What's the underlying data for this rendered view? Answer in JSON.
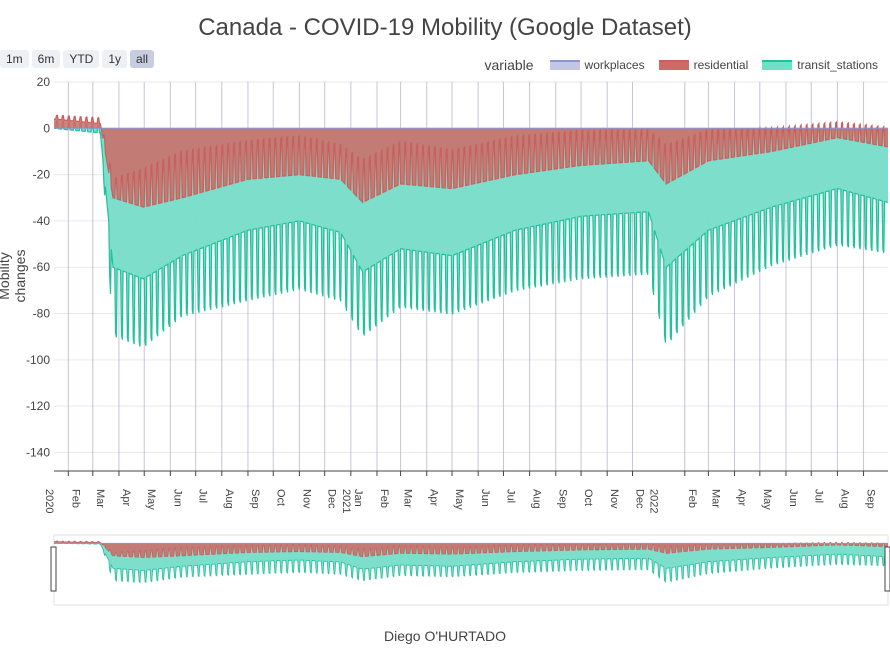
{
  "chart_data": {
    "type": "area",
    "title": "Canada - COVID-19 Mobility (Google Dataset)",
    "ylabel": "Mobility changes",
    "caption": "Diego O'HURTADO",
    "legend_title": "variable",
    "ylim": [
      -148,
      20
    ],
    "yticks": [
      20,
      0,
      -20,
      -40,
      -60,
      -80,
      -100,
      -120,
      -140
    ],
    "x_range": [
      "2020-01-15",
      "2022-09-30"
    ],
    "xtick_labels": [
      "Feb",
      "Mar",
      "Apr",
      "May",
      "Jun",
      "Jul",
      "Aug",
      "Sep",
      "Oct",
      "Nov",
      "Dec",
      "Jan",
      "Feb",
      "Mar",
      "Apr",
      "May",
      "Jun",
      "Jul",
      "Aug",
      "Sep",
      "Oct",
      "Nov",
      "Dec",
      "Feb",
      "Mar",
      "Apr",
      "May",
      "Jun",
      "Jul",
      "Aug",
      "Sep"
    ],
    "xtick_dates": [
      "2020-02-01",
      "2020-03-01",
      "2020-04-01",
      "2020-05-01",
      "2020-06-01",
      "2020-07-01",
      "2020-08-01",
      "2020-09-01",
      "2020-10-01",
      "2020-11-01",
      "2020-12-01",
      "2021-01-01",
      "2021-02-01",
      "2021-03-01",
      "2021-04-01",
      "2021-05-01",
      "2021-06-01",
      "2021-07-01",
      "2021-08-01",
      "2021-09-01",
      "2021-10-01",
      "2021-11-01",
      "2021-12-01",
      "2022-02-01",
      "2022-03-01",
      "2022-04-01",
      "2022-05-01",
      "2022-06-01",
      "2022-07-01",
      "2022-08-01",
      "2022-09-01"
    ],
    "year_ticks": [
      {
        "label": "2020",
        "date": "2020-01-15"
      },
      {
        "label": "2021",
        "date": "2021-01-01"
      },
      {
        "label": "2022",
        "date": "2022-01-01"
      }
    ],
    "grid": true,
    "legend_position": "top-right",
    "range_buttons": [
      "1m",
      "6m",
      "YTD",
      "1y",
      "all"
    ],
    "active_range": "all",
    "has_range_slider": true,
    "weekday_pattern": [
      1.0,
      1.0,
      1.0,
      1.0,
      1.0,
      0.2,
      0.15
    ],
    "series": [
      {
        "name": "workplaces",
        "color": "#8f94cf",
        "fill": "#c4c6e8",
        "baseline": [
          [
            "2020-01-15",
            0
          ],
          [
            "2022-09-30",
            0
          ]
        ],
        "envelope_weekday": [
          [
            "2020-01-15",
            0
          ],
          [
            "2022-09-30",
            0
          ]
        ],
        "envelope_weekend": [
          [
            "2020-01-15",
            0
          ],
          [
            "2022-09-30",
            0
          ]
        ]
      },
      {
        "name": "residential",
        "color": "#c9605e",
        "fill": "#cf6a66",
        "baseline": [
          [
            "2020-01-15",
            4
          ],
          [
            "2020-03-10",
            2
          ],
          [
            "2020-03-25",
            -30
          ],
          [
            "2020-04-30",
            -34
          ],
          [
            "2020-06-15",
            -30
          ],
          [
            "2020-09-01",
            -22
          ],
          [
            "2020-11-01",
            -20
          ],
          [
            "2020-12-20",
            -22
          ],
          [
            "2021-01-15",
            -32
          ],
          [
            "2021-03-01",
            -24
          ],
          [
            "2021-05-01",
            -26
          ],
          [
            "2021-07-15",
            -20
          ],
          [
            "2021-10-01",
            -16
          ],
          [
            "2021-12-20",
            -14
          ],
          [
            "2022-01-10",
            -24
          ],
          [
            "2022-03-01",
            -14
          ],
          [
            "2022-05-15",
            -10
          ],
          [
            "2022-08-01",
            -4
          ],
          [
            "2022-09-30",
            -8
          ]
        ],
        "envelope_weekday": [
          [
            "2020-01-15",
            4
          ],
          [
            "2020-03-10",
            2
          ],
          [
            "2020-03-25",
            -30
          ],
          [
            "2020-04-30",
            -34
          ],
          [
            "2020-06-15",
            -30
          ],
          [
            "2020-09-01",
            -22
          ],
          [
            "2020-11-01",
            -20
          ],
          [
            "2020-12-20",
            -22
          ],
          [
            "2021-01-15",
            -32
          ],
          [
            "2021-03-01",
            -24
          ],
          [
            "2021-05-01",
            -26
          ],
          [
            "2021-07-15",
            -20
          ],
          [
            "2021-10-01",
            -16
          ],
          [
            "2021-12-20",
            -14
          ],
          [
            "2022-01-10",
            -24
          ],
          [
            "2022-03-01",
            -14
          ],
          [
            "2022-05-15",
            -10
          ],
          [
            "2022-08-01",
            -4
          ],
          [
            "2022-09-30",
            -8
          ]
        ],
        "envelope_weekend": [
          [
            "2020-01-15",
            6
          ],
          [
            "2020-03-10",
            5
          ],
          [
            "2020-03-25",
            -20
          ],
          [
            "2020-04-30",
            -14
          ],
          [
            "2020-06-15",
            -6
          ],
          [
            "2020-09-01",
            -2
          ],
          [
            "2020-11-01",
            0
          ],
          [
            "2020-12-20",
            -4
          ],
          [
            "2021-01-15",
            -10
          ],
          [
            "2021-03-01",
            -2
          ],
          [
            "2021-05-01",
            -6
          ],
          [
            "2021-07-15",
            0
          ],
          [
            "2021-10-01",
            2
          ],
          [
            "2021-12-20",
            2
          ],
          [
            "2022-01-10",
            -4
          ],
          [
            "2022-03-01",
            2
          ],
          [
            "2022-05-15",
            2
          ],
          [
            "2022-08-01",
            4
          ],
          [
            "2022-09-30",
            2
          ]
        ]
      },
      {
        "name": "transit_stations",
        "color": "#1ec29c",
        "fill": "#6fe0c6",
        "baseline": [
          [
            "2020-01-15",
            0
          ],
          [
            "2020-03-10",
            -2
          ],
          [
            "2020-03-25",
            -60
          ],
          [
            "2020-04-30",
            -65
          ],
          [
            "2020-06-15",
            -55
          ],
          [
            "2020-09-01",
            -44
          ],
          [
            "2020-11-01",
            -40
          ],
          [
            "2020-12-20",
            -45
          ],
          [
            "2021-01-15",
            -62
          ],
          [
            "2021-03-01",
            -52
          ],
          [
            "2021-05-01",
            -55
          ],
          [
            "2021-07-15",
            -44
          ],
          [
            "2021-10-01",
            -38
          ],
          [
            "2021-12-20",
            -36
          ],
          [
            "2022-01-10",
            -60
          ],
          [
            "2022-03-01",
            -44
          ],
          [
            "2022-05-15",
            -34
          ],
          [
            "2022-08-01",
            -26
          ],
          [
            "2022-09-30",
            -32
          ]
        ],
        "envelope_weekday": [
          [
            "2020-01-15",
            0
          ],
          [
            "2020-03-10",
            -2
          ],
          [
            "2020-03-25",
            -60
          ],
          [
            "2020-04-30",
            -65
          ],
          [
            "2020-06-15",
            -55
          ],
          [
            "2020-09-01",
            -44
          ],
          [
            "2020-11-01",
            -40
          ],
          [
            "2020-12-20",
            -45
          ],
          [
            "2021-01-15",
            -62
          ],
          [
            "2021-03-01",
            -52
          ],
          [
            "2021-05-01",
            -55
          ],
          [
            "2021-07-15",
            -44
          ],
          [
            "2021-10-01",
            -38
          ],
          [
            "2021-12-20",
            -36
          ],
          [
            "2022-01-10",
            -60
          ],
          [
            "2022-03-01",
            -44
          ],
          [
            "2022-05-15",
            -34
          ],
          [
            "2022-08-01",
            -26
          ],
          [
            "2022-09-30",
            -32
          ]
        ],
        "envelope_weekend": [
          [
            "2020-01-15",
            4
          ],
          [
            "2020-03-10",
            2
          ],
          [
            "2020-03-25",
            -95
          ],
          [
            "2020-04-30",
            -100
          ],
          [
            "2020-06-15",
            -86
          ],
          [
            "2020-09-01",
            -80
          ],
          [
            "2020-11-01",
            -75
          ],
          [
            "2020-12-20",
            -80
          ],
          [
            "2021-01-15",
            -95
          ],
          [
            "2021-03-01",
            -82
          ],
          [
            "2021-05-01",
            -85
          ],
          [
            "2021-07-15",
            -75
          ],
          [
            "2021-10-01",
            -70
          ],
          [
            "2021-12-20",
            -68
          ],
          [
            "2022-01-10",
            -100
          ],
          [
            "2022-03-01",
            -78
          ],
          [
            "2022-05-15",
            -64
          ],
          [
            "2022-08-01",
            -55
          ],
          [
            "2022-09-30",
            -58
          ]
        ]
      }
    ]
  }
}
